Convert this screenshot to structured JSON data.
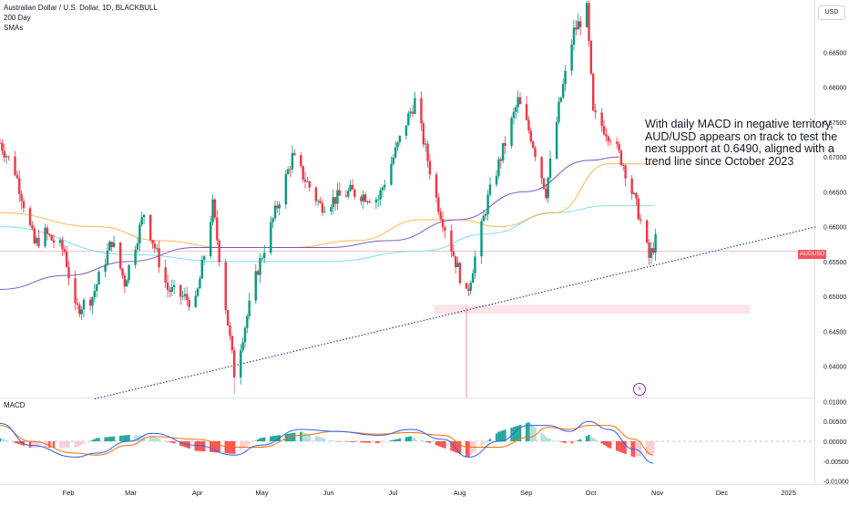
{
  "header": {
    "symbol_line": "Australian Dollar / U.S. Dollar, 1D, BLACKBULL",
    "indicator_1": "200 Day",
    "indicator_2": "SMAs",
    "currency": "USD"
  },
  "annotation": {
    "lines": [
      "With daily MACD in negative territory,",
      "AUD/USD appears on track to test the",
      "next support at 0.6490, aligned with a",
      "trend line since October 2023"
    ]
  },
  "price_tag": "AUDUSD",
  "macd_panel": {
    "label": "MACD"
  },
  "colors": {
    "up": "#089981",
    "down": "#f23645",
    "ma_200": "#7e57c2",
    "ma_orange": "#ff9800",
    "ma_teal": "#80deea",
    "trendline": "#3a3aa0",
    "support_zone": "#fcdbe0",
    "macd_line": "#2962ff",
    "signal_line": "#ff6d00"
  },
  "icons": {
    "flash": "lightning-icon"
  },
  "chart_data": {
    "type": "candlestick",
    "title": "Australian Dollar / U.S. Dollar, 1D, BLACKBULL",
    "price_axis": {
      "ylim": [
        0.6355,
        0.6925
      ],
      "ticks": [
        "0.68500",
        "0.68000",
        "0.67500",
        "0.67000",
        "0.66500",
        "0.66000",
        "0.65500",
        "0.65000",
        "0.64500",
        "0.64000"
      ]
    },
    "macd_axis": {
      "ylim": [
        -0.0108,
        0.0108
      ],
      "ticks": [
        "0.01000",
        "0.00500",
        "0.00000",
        "-0.00500",
        "-0.01000"
      ]
    },
    "x_axis": {
      "labels": [
        "Feb",
        "Mar",
        "Apr",
        "May",
        "Jun",
        "Jul",
        "Aug",
        "Sep",
        "Oct",
        "Nov",
        "Dec",
        "2025"
      ]
    },
    "price_key_points": [
      [
        "2024-01-01",
        0.672
      ],
      [
        "2024-01-08",
        0.668
      ],
      [
        "2024-01-17",
        0.6575
      ],
      [
        "2024-01-22",
        0.659
      ],
      [
        "2024-01-31",
        0.6565
      ],
      [
        "2024-02-05",
        0.648
      ],
      [
        "2024-02-13",
        0.65
      ],
      [
        "2024-02-22",
        0.658
      ],
      [
        "2024-02-28",
        0.652
      ],
      [
        "2024-03-08",
        0.662
      ],
      [
        "2024-03-19",
        0.651
      ],
      [
        "2024-04-01",
        0.649
      ],
      [
        "2024-04-09",
        0.663
      ],
      [
        "2024-04-19",
        0.639
      ],
      [
        "2024-04-30",
        0.654
      ],
      [
        "2024-05-16",
        0.67
      ],
      [
        "2024-05-29",
        0.663
      ],
      [
        "2024-06-12",
        0.665
      ],
      [
        "2024-06-25",
        0.664
      ],
      [
        "2024-07-08",
        0.675
      ],
      [
        "2024-07-12",
        0.678
      ],
      [
        "2024-07-22",
        0.664
      ],
      [
        "2024-08-02",
        0.653
      ],
      [
        "2024-08-05",
        0.65
      ],
      [
        "2024-08-15",
        0.664
      ],
      [
        "2024-08-29",
        0.678
      ],
      [
        "2024-09-04",
        0.673
      ],
      [
        "2024-09-11",
        0.665
      ],
      [
        "2024-09-17",
        0.677
      ],
      [
        "2024-09-24",
        0.688
      ],
      [
        "2024-09-30",
        0.691
      ],
      [
        "2024-10-03",
        0.676
      ],
      [
        "2024-10-11",
        0.673
      ],
      [
        "2024-10-17",
        0.669
      ],
      [
        "2024-10-24",
        0.662
      ],
      [
        "2024-10-29",
        0.6555
      ],
      [
        "2024-11-01",
        0.658
      ]
    ],
    "sma_200_key_points": [
      [
        "2024-01-01",
        0.651
      ],
      [
        "2024-02-01",
        0.653
      ],
      [
        "2024-03-01",
        0.655
      ],
      [
        "2024-04-01",
        0.657
      ],
      [
        "2024-05-01",
        0.657
      ],
      [
        "2024-06-01",
        0.657
      ],
      [
        "2024-07-01",
        0.658
      ],
      [
        "2024-08-01",
        0.661
      ],
      [
        "2024-09-01",
        0.665
      ],
      [
        "2024-10-01",
        0.6695
      ],
      [
        "2024-10-15",
        0.67
      ]
    ],
    "sma_orange_key_points": [
      [
        "2024-01-01",
        0.662
      ],
      [
        "2024-02-15",
        0.66
      ],
      [
        "2024-03-15",
        0.658
      ],
      [
        "2024-04-15",
        0.657
      ],
      [
        "2024-05-15",
        0.657
      ],
      [
        "2024-06-15",
        0.658
      ],
      [
        "2024-07-15",
        0.661
      ],
      [
        "2024-08-01",
        0.661
      ],
      [
        "2024-08-20",
        0.66
      ],
      [
        "2024-09-15",
        0.662
      ],
      [
        "2024-10-10",
        0.669
      ],
      [
        "2024-10-31",
        0.669
      ]
    ],
    "sma_teal_key_points": [
      [
        "2024-01-01",
        0.66
      ],
      [
        "2024-03-01",
        0.656
      ],
      [
        "2024-04-15",
        0.655
      ],
      [
        "2024-06-01",
        0.655
      ],
      [
        "2024-07-15",
        0.6565
      ],
      [
        "2024-08-15",
        0.659
      ],
      [
        "2024-09-15",
        0.662
      ],
      [
        "2024-10-10",
        0.663
      ],
      [
        "2024-10-31",
        0.663
      ]
    ],
    "trend_line": {
      "from": [
        "2024-02-14",
        0.6353
      ],
      "to": [
        "2025-01-15",
        0.66
      ]
    },
    "support_zone": {
      "from": "2024-07-21",
      "to": "2024-12-15",
      "low": 0.6475,
      "high": 0.6488
    },
    "last_price": 0.6565,
    "macd_key_points": [
      [
        "2024-01-01",
        0.0045,
        0.004
      ],
      [
        "2024-01-15",
        -0.001,
        0.0
      ],
      [
        "2024-02-05",
        -0.004,
        -0.003
      ],
      [
        "2024-02-15",
        -0.003,
        -0.0035
      ],
      [
        "2024-03-01",
        0.0,
        -0.001
      ],
      [
        "2024-03-12",
        0.002,
        0.0012
      ],
      [
        "2024-04-01",
        -0.001,
        0.0005
      ],
      [
        "2024-04-19",
        -0.0035,
        -0.0015
      ],
      [
        "2024-05-01",
        -0.001,
        -0.0015
      ],
      [
        "2024-05-20",
        0.003,
        0.0015
      ],
      [
        "2024-06-05",
        0.0025,
        0.0025
      ],
      [
        "2024-06-25",
        0.0015,
        0.0018
      ],
      [
        "2024-07-10",
        0.003,
        0.0022
      ],
      [
        "2024-07-25",
        0.0005,
        0.0015
      ],
      [
        "2024-08-06",
        -0.004,
        -0.0015
      ],
      [
        "2024-08-20",
        0.0,
        -0.0015
      ],
      [
        "2024-09-03",
        0.004,
        0.001
      ],
      [
        "2024-09-12",
        0.004,
        0.0035
      ],
      [
        "2024-09-22",
        0.0025,
        0.003
      ],
      [
        "2024-10-01",
        0.005,
        0.004
      ],
      [
        "2024-10-10",
        0.003,
        0.004
      ],
      [
        "2024-10-22",
        -0.002,
        0.0005
      ],
      [
        "2024-10-31",
        -0.0055,
        -0.0035
      ]
    ]
  }
}
